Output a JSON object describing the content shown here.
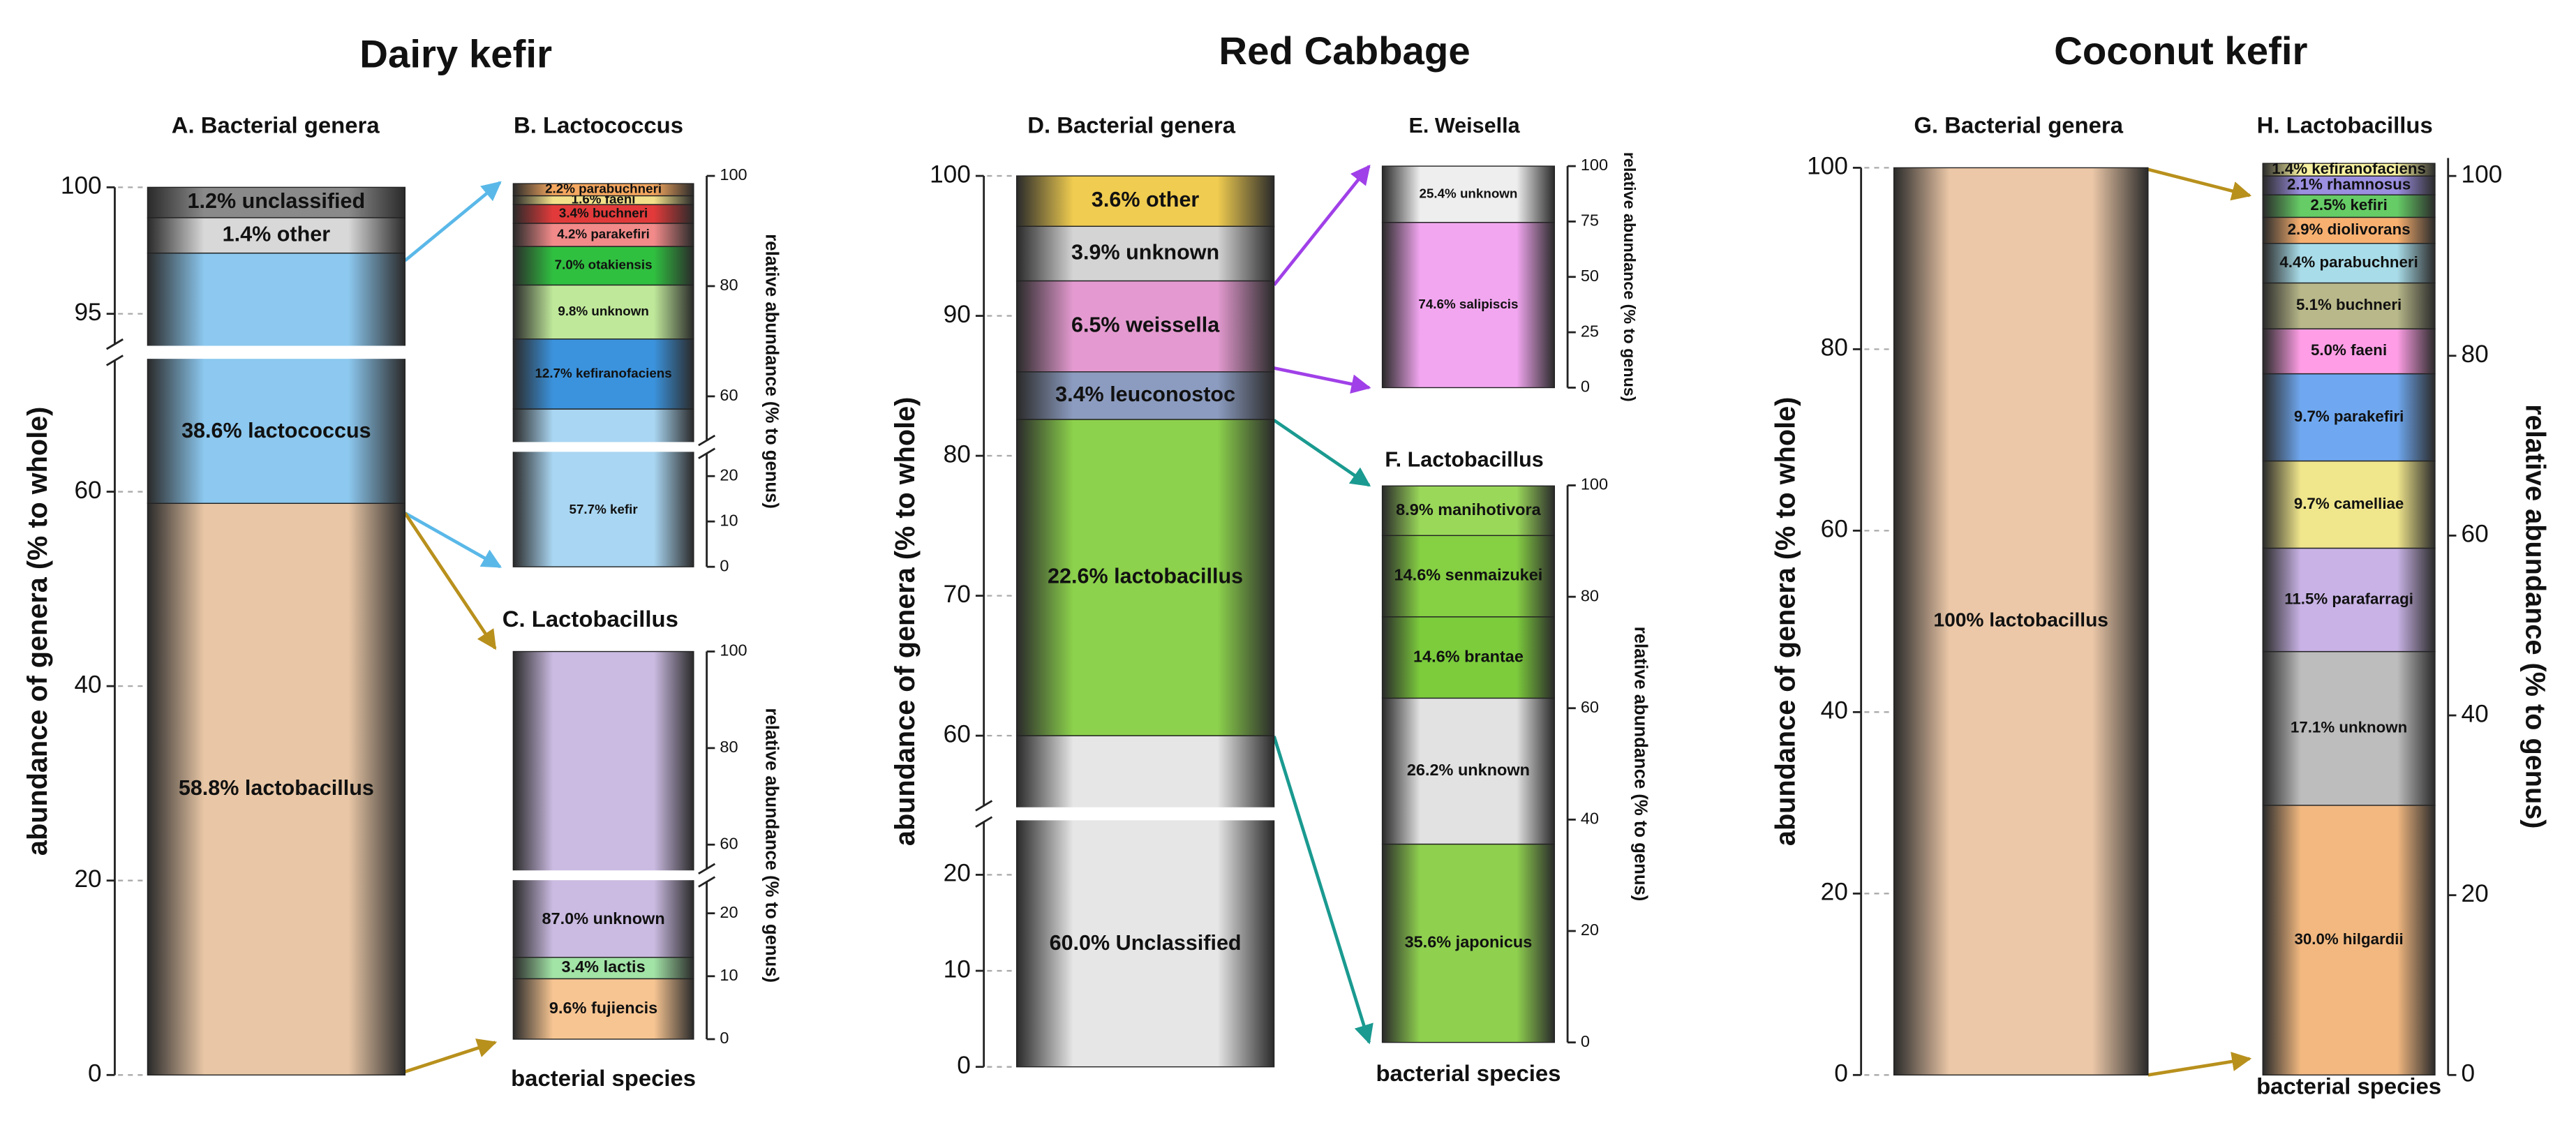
{
  "figure": {
    "panel_titles": [
      "Dairy kefir",
      "Red Cabbage",
      "Coconut kefir"
    ]
  },
  "chart_data": [
    {
      "type": "stacked_bar",
      "title": "A. Bacterial genera",
      "ylabel": "abundance of genera (% to whole)",
      "ylim": [
        0,
        100
      ],
      "ybreak": [
        73.5,
        93.8
      ],
      "yticks": [
        0,
        20,
        40,
        60,
        95,
        100
      ],
      "segments": [
        {
          "label": "58.8% lactobacillus",
          "value": 58.8,
          "color": "#e9c7a6"
        },
        {
          "label": "38.6% lactococcus",
          "value": 38.6,
          "color": "#8cc8ef"
        },
        {
          "label": "1.4% other",
          "value": 1.4,
          "color": "#d8d8d8"
        },
        {
          "label": "1.2% unclassified",
          "value": 1.2,
          "color": "#8a8a8a"
        }
      ]
    },
    {
      "type": "stacked_bar",
      "title": "B. Lactococcus",
      "ylabel": "relative abundance (% to genus)",
      "ylim": [
        0,
        100
      ],
      "ybreak": [
        25,
        52
      ],
      "yticks": [
        0,
        10,
        20,
        60,
        80,
        100
      ],
      "segments": [
        {
          "label": "57.7% kefir",
          "value": 57.7,
          "color": "#a9d6f2"
        },
        {
          "label": "12.7% kefiranofaciens",
          "value": 12.7,
          "color": "#3b93dd"
        },
        {
          "label": "9.8% unknown",
          "value": 9.8,
          "color": "#bfe89a"
        },
        {
          "label": "7.0% otakiensis",
          "value": 7.0,
          "color": "#30c040"
        },
        {
          "label": "4.2% parakefiri",
          "value": 4.2,
          "color": "#f28a8a"
        },
        {
          "label": "3.4% buchneri",
          "value": 3.4,
          "color": "#e23a3a"
        },
        {
          "label": "1.6% faeni",
          "value": 1.6,
          "color": "#f3e08a"
        },
        {
          "label": "2.2% parabuchneri",
          "value": 2.2,
          "color": "#f5a860"
        }
      ]
    },
    {
      "type": "stacked_bar",
      "title": "C. Lactobacillus",
      "ylabel": "relative abundance (% to genus)",
      "xlabel": "bacterial species",
      "ylim": [
        0,
        100
      ],
      "ybreak": [
        25,
        55
      ],
      "yticks": [
        0,
        10,
        20,
        60,
        80,
        100
      ],
      "segments": [
        {
          "label": "9.6% fujiencis",
          "value": 9.6,
          "color": "#f7c592"
        },
        {
          "label": "3.4% lactis",
          "value": 3.4,
          "color": "#a2e3a6"
        },
        {
          "label": "87.0% unknown",
          "value": 87.0,
          "color": "#cbbbe2"
        }
      ]
    },
    {
      "type": "stacked_bar",
      "title": "D. Bacterial genera",
      "ylabel": "abundance of genera (% to whole)",
      "ylim": [
        0,
        100
      ],
      "ybreak": [
        25.5,
        55
      ],
      "yticks": [
        0,
        10,
        20,
        60,
        70,
        80,
        90,
        100
      ],
      "segments": [
        {
          "label": "60.0% Unclassified",
          "value": 60.0,
          "color": "#e6e6e6"
        },
        {
          "label": "22.6% lactobacillus",
          "value": 22.6,
          "color": "#8cd24c"
        },
        {
          "label": "3.4% leuconostoc",
          "value": 3.4,
          "color": "#8c9cc0"
        },
        {
          "label": "6.5% weissella",
          "value": 6.5,
          "color": "#e49ad0"
        },
        {
          "label": "3.9% unknown",
          "value": 3.9,
          "color": "#d4d4d4"
        },
        {
          "label": "3.6% other",
          "value": 3.6,
          "color": "#f0cc50"
        }
      ]
    },
    {
      "type": "stacked_bar",
      "title": "E. Weisella",
      "ylabel": "relative abundance (% to genus)",
      "ylim": [
        0,
        100
      ],
      "yticks": [
        0,
        25,
        50,
        75,
        100
      ],
      "segments": [
        {
          "label": "74.6% salipiscis",
          "value": 74.6,
          "color": "#f2a6f0"
        },
        {
          "label": "25.4% unknown",
          "value": 25.4,
          "color": "#eeeeee"
        }
      ]
    },
    {
      "type": "stacked_bar",
      "title": "F. Lactobacillus",
      "ylabel": "relative abundance (% to genus)",
      "xlabel": "bacterial species",
      "ylim": [
        0,
        100
      ],
      "yticks": [
        0,
        20,
        40,
        60,
        80,
        100
      ],
      "segments": [
        {
          "label": "35.6% japonicus",
          "value": 35.6,
          "color": "#8fd14f"
        },
        {
          "label": "26.2% unknown",
          "value": 26.2,
          "color": "#e2e2e2"
        },
        {
          "label": "14.6% brantae",
          "value": 14.6,
          "color": "#7ccc3c"
        },
        {
          "label": "14.6% senmaizukei",
          "value": 14.6,
          "color": "#86d044"
        },
        {
          "label": "8.9% manihotivora",
          "value": 8.9,
          "color": "#9ad85a"
        }
      ]
    },
    {
      "type": "stacked_bar",
      "title": "G. Bacterial genera",
      "ylabel": "abundance of genera (% to whole)",
      "ylim": [
        0,
        100
      ],
      "yticks": [
        0,
        20,
        40,
        60,
        80,
        100
      ],
      "segments": [
        {
          "label": "100% lactobacillus",
          "value": 100,
          "color": "#ecc8a8"
        }
      ]
    },
    {
      "type": "stacked_bar",
      "title": "H. Lactobacillus",
      "ylabel": "relative abundance (% to genus)",
      "xlabel": "bacterial species",
      "ylim": [
        0,
        102
      ],
      "yticks": [
        0,
        20,
        40,
        60,
        80,
        100
      ],
      "segments": [
        {
          "label": "30.0% hilgardii",
          "value": 30.0,
          "color": "#f2b880"
        },
        {
          "label": "17.1% unknown",
          "value": 17.1,
          "color": "#bdbdbd"
        },
        {
          "label": "11.5% parafarragi",
          "value": 11.5,
          "color": "#c9b3e6"
        },
        {
          "label": "9.7% camelliae",
          "value": 9.7,
          "color": "#f0e68c"
        },
        {
          "label": "9.7% parakefiri",
          "value": 9.7,
          "color": "#6fa8f0"
        },
        {
          "label": "5.0% faeni",
          "value": 5.0,
          "color": "#ff9ee6"
        },
        {
          "label": "5.1% buchneri",
          "value": 5.1,
          "color": "#b8b88a"
        },
        {
          "label": "4.4% parabuchneri",
          "value": 4.4,
          "color": "#a8dce8"
        },
        {
          "label": "2.9% diolivorans",
          "value": 2.9,
          "color": "#f8b070"
        },
        {
          "label": "2.5% kefiri",
          "value": 2.5,
          "color": "#66cc66"
        },
        {
          "label": "2.1% rhamnosus",
          "value": 2.1,
          "color": "#9b8fe0"
        },
        {
          "label": "1.4% kefiranofaciens",
          "value": 1.4,
          "color": "#f6f0a0"
        }
      ]
    }
  ]
}
